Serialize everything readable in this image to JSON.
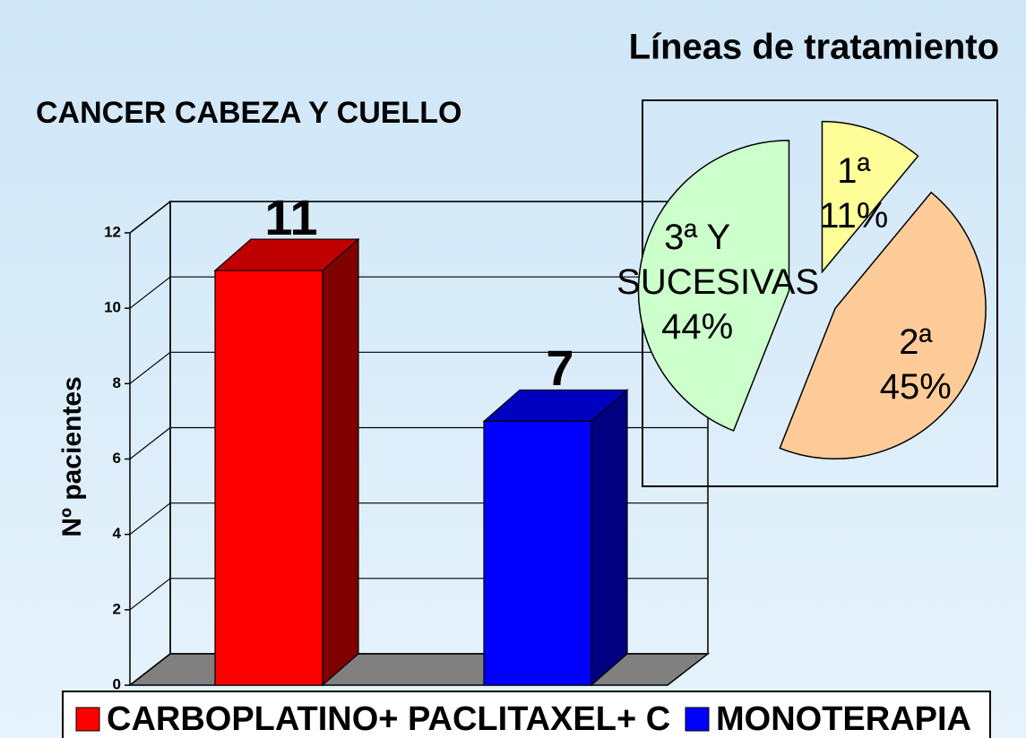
{
  "chart_data": [
    {
      "type": "bar3d",
      "title": "CANCER CABEZA Y CUELLO",
      "y_label": "Nº pacientes",
      "series": [
        {
          "name": "CARBOPLATINO+ PACLITAXEL+ C",
          "color": "#ff0000",
          "values": [
            11
          ]
        },
        {
          "name": "MONOTERAPIA",
          "color": "#0000ff",
          "values": [
            7
          ]
        }
      ],
      "ylim": [
        0,
        12
      ],
      "yticks": [
        0,
        2,
        4,
        6,
        8,
        10,
        12
      ],
      "grid": true
    },
    {
      "type": "pie",
      "title": "Líneas de tratamiento",
      "categories": [
        "1ª",
        "2ª",
        "3ª Y SUCESIVAS"
      ],
      "values": [
        11,
        45,
        44
      ],
      "value_labels": [
        "11%",
        "45%",
        "44%"
      ],
      "colors": [
        "#ffff99",
        "#ffcc99",
        "#ccffcc"
      ],
      "exploded": true
    }
  ]
}
